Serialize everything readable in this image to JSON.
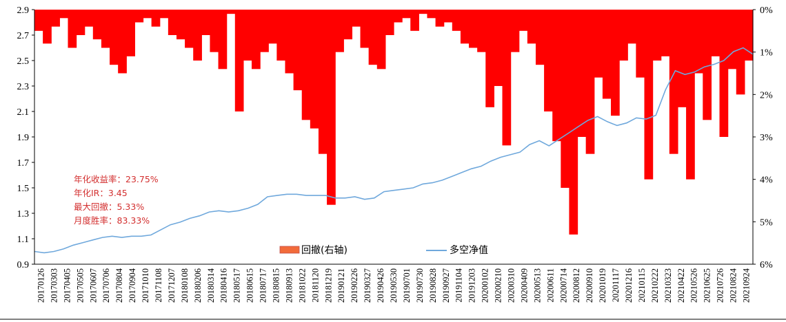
{
  "chart_data": {
    "type": "area+line",
    "title": "",
    "xlabel": "",
    "ylabel_left": "",
    "ylabel_right": "",
    "left_axis": {
      "range": [
        0.9,
        2.9
      ],
      "ticks": [
        "0.9",
        "1.1",
        "1.3",
        "1.5",
        "1.7",
        "1.9",
        "2.1",
        "2.3",
        "2.5",
        "2.7",
        "2.9"
      ]
    },
    "right_axis": {
      "range": [
        6,
        0
      ],
      "inverted": true,
      "ticks": [
        "0%",
        "1%",
        "2%",
        "3%",
        "4%",
        "5%",
        "6%"
      ]
    },
    "x_ticks": [
      "20170126",
      "20170303",
      "20170405",
      "20170505",
      "20170607",
      "20170706",
      "20170804",
      "20170904",
      "20171010",
      "20171108",
      "20171207",
      "20180108",
      "20180206",
      "20180314",
      "20180416",
      "20180517",
      "20180615",
      "20180717",
      "20180815",
      "20180913",
      "20181022",
      "20181120",
      "20181219",
      "20190121",
      "20190226",
      "20190327",
      "20190426",
      "20190530",
      "20190701",
      "20190730",
      "20190828",
      "20190927",
      "20191104",
      "20191203",
      "20200102",
      "20200210",
      "20200310",
      "20200409",
      "20200513",
      "20200611",
      "20200714",
      "20200812",
      "20200910",
      "20201019",
      "20201117",
      "20201216",
      "20210115",
      "20210222",
      "20210323",
      "20210422",
      "20210526",
      "20210625",
      "20210726",
      "20210824",
      "20210924"
    ],
    "legend": [
      {
        "label": "回撤(右轴)",
        "type": "area",
        "color": "#ff0000",
        "swatch": "#f26b3a"
      },
      {
        "label": "多空净值",
        "type": "line",
        "color": "#6fa8dc"
      }
    ],
    "series": [
      {
        "name": "多空净值",
        "axis": "left",
        "values": [
          1.0,
          0.99,
          1.0,
          1.02,
          1.05,
          1.07,
          1.09,
          1.11,
          1.12,
          1.11,
          1.12,
          1.12,
          1.13,
          1.17,
          1.21,
          1.23,
          1.26,
          1.28,
          1.31,
          1.32,
          1.31,
          1.32,
          1.34,
          1.37,
          1.43,
          1.44,
          1.45,
          1.45,
          1.44,
          1.44,
          1.44,
          1.42,
          1.42,
          1.43,
          1.41,
          1.42,
          1.47,
          1.48,
          1.49,
          1.5,
          1.53,
          1.54,
          1.56,
          1.59,
          1.62,
          1.65,
          1.67,
          1.71,
          1.74,
          1.76,
          1.78,
          1.84,
          1.87,
          1.83,
          1.88,
          1.93,
          1.98,
          2.03,
          2.06,
          2.02,
          1.99,
          2.01,
          2.05,
          2.04,
          2.07,
          2.27,
          2.42,
          2.39,
          2.41,
          2.45,
          2.47,
          2.5,
          2.57,
          2.6,
          2.55
        ]
      },
      {
        "name": "回撤(右轴)",
        "axis": "right",
        "values": [
          0.5,
          0.8,
          0.4,
          0.2,
          0.9,
          0.6,
          0.4,
          0.7,
          0.9,
          1.3,
          1.5,
          1.1,
          0.3,
          0.2,
          0.4,
          0.2,
          0.6,
          0.7,
          0.9,
          1.2,
          0.6,
          1.0,
          1.4,
          0.1,
          2.4,
          1.2,
          1.4,
          1.0,
          0.8,
          1.2,
          1.5,
          1.9,
          2.6,
          2.8,
          3.4,
          4.6,
          1.0,
          0.7,
          0.4,
          0.9,
          1.3,
          1.4,
          0.6,
          0.3,
          0.2,
          0.5,
          0.1,
          0.2,
          0.4,
          0.3,
          0.5,
          0.8,
          0.9,
          1.0,
          2.3,
          1.8,
          3.2,
          1.0,
          0.5,
          0.8,
          1.3,
          2.4,
          3.1,
          4.2,
          5.3,
          3.0,
          3.4,
          1.6,
          2.1,
          2.5,
          1.2,
          0.8,
          1.6,
          4.0,
          1.2,
          1.1,
          3.4,
          2.3,
          4.0,
          1.5,
          2.6,
          1.1,
          3.0,
          1.4,
          2.0,
          1.2
        ]
      }
    ],
    "annotations": [
      "年化收益率：23.75%",
      "年化IR：3.45",
      "最大回撤：5.33%",
      "月度胜率：83.33%"
    ]
  }
}
